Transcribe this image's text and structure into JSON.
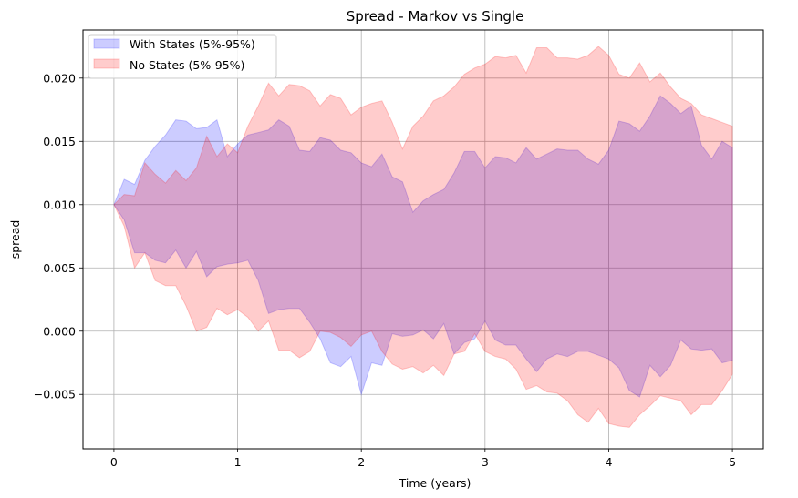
{
  "chart_data": {
    "type": "area",
    "title": "Spread - Markov vs Single",
    "xlabel": "Time (years)",
    "ylabel": "spread",
    "xlim": [
      -0.25,
      5.25
    ],
    "ylim": [
      -0.0093,
      0.0238
    ],
    "xticks": [
      0,
      1,
      2,
      3,
      4,
      5
    ],
    "xtick_labels": [
      "0",
      "1",
      "2",
      "3",
      "4",
      "5"
    ],
    "yticks": [
      -0.005,
      0.0,
      0.005,
      0.01,
      0.015,
      0.02
    ],
    "ytick_labels": [
      "−0.005",
      "0.000",
      "0.005",
      "0.010",
      "0.015",
      "0.020"
    ],
    "grid": true,
    "legend_position": "top-left",
    "series": [
      {
        "name": "With States (5%-95%)",
        "color": "#0000ff",
        "x": [
          0,
          0.083,
          0.167,
          0.25,
          0.333,
          0.417,
          0.5,
          0.583,
          0.667,
          0.75,
          0.833,
          0.917,
          1.0,
          1.083,
          1.167,
          1.25,
          1.333,
          1.417,
          1.5,
          1.583,
          1.667,
          1.75,
          1.833,
          1.917,
          2.0,
          2.083,
          2.167,
          2.25,
          2.333,
          2.417,
          2.5,
          2.583,
          2.667,
          2.75,
          2.833,
          2.917,
          3.0,
          3.083,
          3.167,
          3.25,
          3.333,
          3.417,
          3.5,
          3.583,
          3.667,
          3.75,
          3.833,
          3.917,
          4.0,
          4.083,
          4.167,
          4.25,
          4.333,
          4.417,
          4.5,
          4.583,
          4.667,
          4.75,
          4.833,
          4.917,
          5.0
        ],
        "upper": [
          0.01,
          0.012,
          0.0116,
          0.0135,
          0.0146,
          0.0155,
          0.0167,
          0.0166,
          0.016,
          0.0161,
          0.0167,
          0.0138,
          0.0148,
          0.0155,
          0.0157,
          0.0159,
          0.0167,
          0.0162,
          0.0143,
          0.0142,
          0.0153,
          0.0151,
          0.0143,
          0.0141,
          0.0133,
          0.013,
          0.014,
          0.0122,
          0.0118,
          0.0094,
          0.0103,
          0.0108,
          0.0112,
          0.0125,
          0.0142,
          0.0142,
          0.0129,
          0.0138,
          0.0137,
          0.0133,
          0.0145,
          0.0136,
          0.014,
          0.0144,
          0.0143,
          0.0143,
          0.0136,
          0.0132,
          0.0143,
          0.0166,
          0.0164,
          0.0158,
          0.017,
          0.0186,
          0.018,
          0.0172,
          0.0178,
          0.0147,
          0.0136,
          0.015,
          0.0145
        ],
        "lower": [
          0.01,
          0.0088,
          0.0062,
          0.0062,
          0.0056,
          0.0054,
          0.0064,
          0.005,
          0.0063,
          0.0043,
          0.0051,
          0.0053,
          0.0054,
          0.0056,
          0.004,
          0.0014,
          0.0017,
          0.0018,
          0.0018,
          0.0007,
          -0.0006,
          -0.0025,
          -0.0028,
          -0.002,
          -0.005,
          -0.0025,
          -0.0027,
          -0.0002,
          -0.0004,
          -0.0003,
          0.0001,
          -0.0006,
          0.0006,
          -0.0018,
          -0.0009,
          -0.0006,
          0.0008,
          -0.0007,
          -0.0011,
          -0.0011,
          -0.0022,
          -0.0032,
          -0.0022,
          -0.0018,
          -0.002,
          -0.0016,
          -0.0016,
          -0.0019,
          -0.0022,
          -0.0029,
          -0.0047,
          -0.0052,
          -0.0027,
          -0.0036,
          -0.0027,
          -0.0007,
          -0.0014,
          -0.0015,
          -0.0014,
          -0.0025,
          -0.0023
        ]
      },
      {
        "name": "No States (5%-95%)",
        "color": "#ff0000",
        "x": [
          0,
          0.083,
          0.167,
          0.25,
          0.333,
          0.417,
          0.5,
          0.583,
          0.667,
          0.75,
          0.833,
          0.917,
          1.0,
          1.083,
          1.167,
          1.25,
          1.333,
          1.417,
          1.5,
          1.583,
          1.667,
          1.75,
          1.833,
          1.917,
          2.0,
          2.083,
          2.167,
          2.25,
          2.333,
          2.417,
          2.5,
          2.583,
          2.667,
          2.75,
          2.833,
          2.917,
          3.0,
          3.083,
          3.167,
          3.25,
          3.333,
          3.417,
          3.5,
          3.583,
          3.667,
          3.75,
          3.833,
          3.917,
          4.0,
          4.083,
          4.167,
          4.25,
          4.333,
          4.417,
          4.5,
          4.583,
          4.667,
          4.75,
          4.833,
          4.917,
          5.0
        ],
        "upper": [
          0.01,
          0.0108,
          0.0107,
          0.0133,
          0.0124,
          0.0117,
          0.0127,
          0.0119,
          0.0129,
          0.0154,
          0.0138,
          0.0148,
          0.0141,
          0.0162,
          0.0178,
          0.0196,
          0.0186,
          0.0195,
          0.0194,
          0.019,
          0.0178,
          0.0187,
          0.0184,
          0.0171,
          0.0177,
          0.018,
          0.0182,
          0.0165,
          0.0144,
          0.0162,
          0.017,
          0.0182,
          0.0186,
          0.0193,
          0.0203,
          0.0208,
          0.0211,
          0.0217,
          0.0216,
          0.0218,
          0.0204,
          0.0224,
          0.0224,
          0.0216,
          0.0216,
          0.0215,
          0.0218,
          0.0225,
          0.0218,
          0.0203,
          0.02,
          0.0212,
          0.0197,
          0.0204,
          0.0193,
          0.0184,
          0.018,
          0.0171,
          0.0168,
          0.0165,
          0.0162
        ],
        "lower": [
          0.01,
          0.0083,
          0.005,
          0.0062,
          0.004,
          0.0036,
          0.0036,
          0.002,
          0.0,
          0.0003,
          0.0018,
          0.0013,
          0.0017,
          0.0011,
          0.0,
          0.0008,
          -0.0015,
          -0.0015,
          -0.0021,
          -0.0016,
          0.0,
          -0.0001,
          -0.0005,
          -0.0012,
          -0.0003,
          0.0,
          -0.0016,
          -0.0026,
          -0.003,
          -0.0028,
          -0.0033,
          -0.0027,
          -0.0035,
          -0.0018,
          -0.0016,
          -0.0002,
          -0.0016,
          -0.002,
          -0.0022,
          -0.003,
          -0.0046,
          -0.0043,
          -0.0048,
          -0.0049,
          -0.0055,
          -0.0066,
          -0.0072,
          -0.0061,
          -0.0073,
          -0.0075,
          -0.0076,
          -0.0066,
          -0.0059,
          -0.0051,
          -0.0053,
          -0.0055,
          -0.0066,
          -0.0058,
          -0.0058,
          -0.0047,
          -0.0034
        ]
      }
    ]
  }
}
